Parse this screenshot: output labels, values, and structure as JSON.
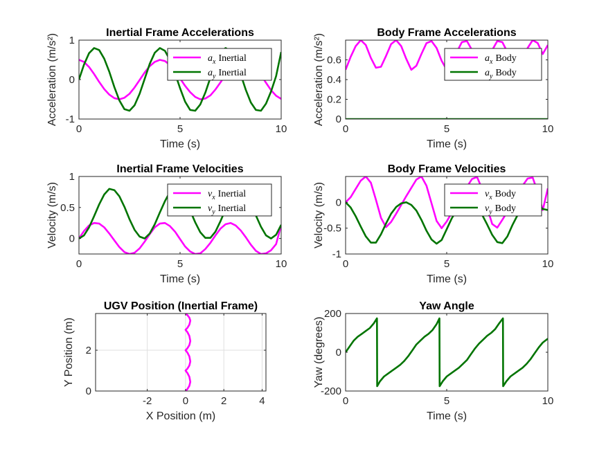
{
  "figure": {
    "background": "#ffffff"
  },
  "colors": {
    "magenta": "#ff00ff",
    "green": "#007400",
    "grid": "#dfdfdf",
    "axis": "#262626"
  },
  "chart_data": [
    {
      "id": "inertial-acc",
      "type": "line",
      "title": "Inertial Frame Accelerations",
      "xlabel": "Time (s)",
      "ylabel": "Acceleration (m/s²)",
      "xlim": [
        0,
        10
      ],
      "ylim": [
        -1,
        1
      ],
      "xticks": [
        0,
        5,
        10
      ],
      "yticks": [
        -1,
        0,
        1
      ],
      "grid": false,
      "legend": "top-right",
      "series": [
        {
          "name": "a_x Inertial",
          "legend_var": "a",
          "legend_sub": "x",
          "legend_word": "Inertial",
          "color": "#ff00ff",
          "x": [
            0,
            0.25,
            0.5,
            0.75,
            1.0,
            1.25,
            1.5,
            1.75,
            2.0,
            2.25,
            2.5,
            2.75,
            3.0,
            3.25,
            3.5,
            3.75,
            4.0,
            4.25,
            4.5,
            4.75,
            5.0,
            5.25,
            5.5,
            5.75,
            6.0,
            6.25,
            6.5,
            6.75,
            7.0,
            7.25,
            7.5,
            7.75,
            8.0,
            8.25,
            8.5,
            8.75,
            9.0,
            9.25,
            9.5,
            9.75,
            10.0
          ],
          "y": [
            0.5,
            0.45,
            0.32,
            0.14,
            -0.06,
            -0.24,
            -0.38,
            -0.47,
            -0.5,
            -0.46,
            -0.36,
            -0.2,
            -0.01,
            0.18,
            0.34,
            0.45,
            0.5,
            0.47,
            0.37,
            0.22,
            0.03,
            -0.16,
            -0.32,
            -0.44,
            -0.5,
            -0.48,
            -0.4,
            -0.25,
            -0.07,
            0.12,
            0.29,
            0.42,
            0.49,
            0.49,
            0.42,
            0.29,
            0.11,
            -0.08,
            -0.27,
            -0.41,
            -0.49
          ]
        },
        {
          "name": "a_y Inertial",
          "legend_var": "a",
          "legend_sub": "y",
          "legend_word": "Inertial",
          "color": "#007400",
          "x": [
            0,
            0.25,
            0.5,
            0.75,
            1.0,
            1.25,
            1.5,
            1.75,
            2.0,
            2.25,
            2.5,
            2.75,
            3.0,
            3.25,
            3.5,
            3.75,
            4.0,
            4.25,
            4.5,
            4.75,
            5.0,
            5.25,
            5.5,
            5.75,
            6.0,
            6.25,
            6.5,
            6.75,
            7.0,
            7.25,
            7.5,
            7.75,
            8.0,
            8.25,
            8.5,
            8.75,
            9.0,
            9.25,
            9.5,
            9.75,
            10.0
          ],
          "y": [
            0,
            0.38,
            0.67,
            0.8,
            0.75,
            0.53,
            0.2,
            -0.19,
            -0.53,
            -0.75,
            -0.79,
            -0.65,
            -0.36,
            0.02,
            0.4,
            0.68,
            0.8,
            0.73,
            0.5,
            0.16,
            -0.22,
            -0.56,
            -0.77,
            -0.79,
            -0.63,
            -0.33,
            0.05,
            0.42,
            0.69,
            0.8,
            0.72,
            0.48,
            0.13,
            -0.26,
            -0.58,
            -0.77,
            -0.79,
            -0.61,
            -0.3,
            0.09,
            0.7
          ]
        }
      ]
    },
    {
      "id": "body-acc",
      "type": "line",
      "title": "Body Frame Accelerations",
      "xlabel": "Time (s)",
      "ylabel": "Acceleration (m/s²)",
      "xlim": [
        0,
        10
      ],
      "ylim": [
        0,
        0.8
      ],
      "xticks": [
        0,
        5,
        10
      ],
      "yticks": [
        0,
        0.2,
        0.4,
        0.6
      ],
      "grid": false,
      "legend": "top-right",
      "series": [
        {
          "name": "a_x Body",
          "legend_var": "a",
          "legend_sub": "x",
          "legend_word": "Body",
          "color": "#ff00ff",
          "x": [
            0,
            0.25,
            0.5,
            0.75,
            1.0,
            1.25,
            1.5,
            1.75,
            2.0,
            2.25,
            2.5,
            2.75,
            3.0,
            3.25,
            3.5,
            3.75,
            4.0,
            4.25,
            4.5,
            4.75,
            5.0,
            5.25,
            5.5,
            5.75,
            6.0,
            6.25,
            6.5,
            6.75,
            7.0,
            7.25,
            7.5,
            7.75,
            8.0,
            8.25,
            8.5,
            8.75,
            9.0,
            9.25,
            9.5,
            9.75,
            10.0
          ],
          "y": [
            0.5,
            0.63,
            0.74,
            0.8,
            0.75,
            0.62,
            0.52,
            0.53,
            0.64,
            0.76,
            0.8,
            0.74,
            0.61,
            0.5,
            0.54,
            0.66,
            0.77,
            0.79,
            0.72,
            0.59,
            0.5,
            0.56,
            0.68,
            0.78,
            0.79,
            0.7,
            0.57,
            0.5,
            0.58,
            0.7,
            0.79,
            0.78,
            0.68,
            0.55,
            0.51,
            0.6,
            0.72,
            0.8,
            0.77,
            0.66,
            0.75
          ]
        },
        {
          "name": "a_y Body",
          "legend_var": "a",
          "legend_sub": "y",
          "legend_word": "Body",
          "color": "#007400",
          "x": [
            0,
            10
          ],
          "y": [
            0,
            0
          ]
        }
      ]
    },
    {
      "id": "inertial-vel",
      "type": "line",
      "title": "Inertial Frame Velocities",
      "xlabel": "Time (s)",
      "ylabel": "Velocity (m/s)",
      "xlim": [
        0,
        10
      ],
      "ylim": [
        -0.25,
        1
      ],
      "xticks": [
        0,
        5,
        10
      ],
      "yticks": [
        0,
        0.5,
        1
      ],
      "grid": false,
      "legend": "top-right",
      "series": [
        {
          "name": "v_x Inertial",
          "legend_var": "v",
          "legend_sub": "x",
          "legend_word": "Inertial",
          "color": "#ff00ff",
          "x": [
            0,
            0.25,
            0.5,
            0.75,
            1.0,
            1.25,
            1.5,
            1.75,
            2.0,
            2.25,
            2.5,
            2.75,
            3.0,
            3.25,
            3.5,
            3.75,
            4.0,
            4.25,
            4.5,
            4.75,
            5.0,
            5.25,
            5.5,
            5.75,
            6.0,
            6.25,
            6.5,
            6.75,
            7.0,
            7.25,
            7.5,
            7.75,
            8.0,
            8.25,
            8.5,
            8.75,
            9.0,
            9.25,
            9.5,
            9.75,
            10.0
          ],
          "y": [
            0,
            0.12,
            0.21,
            0.25,
            0.24,
            0.18,
            0.08,
            -0.03,
            -0.14,
            -0.22,
            -0.25,
            -0.23,
            -0.16,
            -0.05,
            0.07,
            0.18,
            0.24,
            0.25,
            0.2,
            0.11,
            -0.01,
            -0.13,
            -0.21,
            -0.25,
            -0.24,
            -0.17,
            -0.07,
            0.05,
            0.16,
            0.23,
            0.25,
            0.21,
            0.13,
            0.02,
            -0.1,
            -0.2,
            -0.25,
            -0.24,
            -0.19,
            -0.09,
            0.22
          ]
        },
        {
          "name": "v_y Inertial",
          "legend_var": "v",
          "legend_sub": "y",
          "legend_word": "Inertial",
          "color": "#007400",
          "x": [
            0,
            0.25,
            0.5,
            0.75,
            1.0,
            1.25,
            1.5,
            1.75,
            2.0,
            2.25,
            2.5,
            2.75,
            3.0,
            3.25,
            3.5,
            3.75,
            4.0,
            4.25,
            4.5,
            4.75,
            5.0,
            5.25,
            5.5,
            5.75,
            6.0,
            6.25,
            6.5,
            6.75,
            7.0,
            7.25,
            7.5,
            7.75,
            8.0,
            8.25,
            8.5,
            8.75,
            9.0,
            9.25,
            9.5,
            9.75,
            10.0
          ],
          "y": [
            0,
            0.05,
            0.18,
            0.36,
            0.55,
            0.71,
            0.8,
            0.78,
            0.68,
            0.51,
            0.31,
            0.14,
            0.03,
            0.0,
            0.08,
            0.23,
            0.42,
            0.6,
            0.75,
            0.8,
            0.76,
            0.63,
            0.45,
            0.26,
            0.1,
            0.01,
            0.01,
            0.11,
            0.28,
            0.47,
            0.65,
            0.78,
            0.8,
            0.72,
            0.56,
            0.37,
            0.19,
            0.05,
            0.0,
            0.06,
            0.22
          ]
        }
      ]
    },
    {
      "id": "body-vel",
      "type": "line",
      "title": "Body Frame Velocities",
      "xlabel": "Time (s)",
      "ylabel": "Velocity (m/s)",
      "xlim": [
        0,
        10
      ],
      "ylim": [
        -1,
        0.5
      ],
      "xticks": [
        0,
        5,
        10
      ],
      "yticks": [
        -1,
        -0.5,
        0
      ],
      "grid": false,
      "legend": "top-right",
      "series": [
        {
          "name": "v_x Body",
          "legend_var": "v",
          "legend_sub": "x",
          "legend_word": "Body",
          "color": "#ff00ff",
          "x": [
            0,
            0.25,
            0.5,
            0.75,
            1.0,
            1.25,
            1.5,
            1.75,
            2.0,
            2.25,
            2.5,
            2.75,
            3.0,
            3.25,
            3.5,
            3.75,
            4.0,
            4.25,
            4.5,
            4.75,
            5.0,
            5.25,
            5.5,
            5.75,
            6.0,
            6.25,
            6.5,
            6.75,
            7.0,
            7.25,
            7.5,
            7.75,
            8.0,
            8.25,
            8.5,
            8.75,
            9.0,
            9.25,
            9.5,
            9.75,
            10.0
          ],
          "y": [
            0,
            0.1,
            0.26,
            0.42,
            0.5,
            0.38,
            0.05,
            -0.3,
            -0.48,
            -0.38,
            -0.22,
            -0.05,
            0.12,
            0.28,
            0.44,
            0.5,
            0.32,
            -0.02,
            -0.36,
            -0.5,
            -0.37,
            -0.2,
            -0.03,
            0.14,
            0.3,
            0.45,
            0.49,
            0.26,
            -0.1,
            -0.42,
            -0.49,
            -0.34,
            -0.18,
            -0.01,
            0.16,
            0.32,
            0.46,
            0.48,
            0.2,
            -0.15,
            0.27
          ]
        },
        {
          "name": "v_y Body",
          "legend_var": "v",
          "legend_sub": "y",
          "legend_word": "Body",
          "color": "#007400",
          "x": [
            0,
            0.25,
            0.5,
            0.75,
            1.0,
            1.25,
            1.5,
            1.75,
            2.0,
            2.25,
            2.5,
            2.75,
            3.0,
            3.25,
            3.5,
            3.75,
            4.0,
            4.25,
            4.5,
            4.75,
            5.0,
            5.25,
            5.5,
            5.75,
            6.0,
            6.25,
            6.5,
            6.75,
            7.0,
            7.25,
            7.5,
            7.75,
            8.0,
            8.25,
            8.5,
            8.75,
            9.0,
            9.25,
            9.5,
            9.75,
            10.0
          ],
          "y": [
            0,
            -0.1,
            -0.27,
            -0.47,
            -0.66,
            -0.78,
            -0.78,
            -0.62,
            -0.41,
            -0.22,
            -0.09,
            -0.02,
            0.0,
            -0.05,
            -0.16,
            -0.34,
            -0.55,
            -0.72,
            -0.8,
            -0.73,
            -0.52,
            -0.31,
            -0.15,
            -0.05,
            0.0,
            -0.02,
            -0.1,
            -0.24,
            -0.43,
            -0.63,
            -0.77,
            -0.79,
            -0.66,
            -0.44,
            -0.25,
            -0.11,
            -0.03,
            0.0,
            -0.04,
            -0.13,
            -0.15
          ]
        }
      ]
    },
    {
      "id": "ugv-position",
      "type": "line",
      "title": "UGV Position (Inertial Frame)",
      "xlabel": "X Position (m)",
      "ylabel": "Y Position (m)",
      "xlim": [
        -4.7,
        4.2
      ],
      "ylim": [
        0,
        3.8
      ],
      "xticks": [
        -2,
        0,
        2,
        4
      ],
      "yticks": [
        0,
        2
      ],
      "grid": true,
      "legend": "none",
      "series": [
        {
          "color": "#ff00ff",
          "x": [
            0,
            0.1,
            0.2,
            0.25,
            0.2,
            0.1,
            0,
            0.1,
            0.2,
            0.25,
            0.2,
            0.1,
            0,
            0.1,
            0.2,
            0.25,
            0.2,
            0.1,
            0,
            0.1,
            0.2,
            0.25,
            0.2,
            0.1,
            0
          ],
          "y": [
            0,
            0.1,
            0.25,
            0.45,
            0.7,
            0.88,
            1.0,
            1.1,
            1.25,
            1.45,
            1.7,
            1.88,
            2.0,
            2.1,
            2.25,
            2.45,
            2.7,
            2.88,
            3.0,
            3.1,
            3.25,
            3.45,
            3.6,
            3.72,
            3.8
          ]
        }
      ]
    },
    {
      "id": "yaw",
      "type": "line",
      "title": "Yaw Angle",
      "xlabel": "Time (s)",
      "ylabel": "Yaw (degrees)",
      "xlim": [
        0,
        10
      ],
      "ylim": [
        -200,
        200
      ],
      "xticks": [
        0,
        5,
        10
      ],
      "yticks": [
        -200,
        0,
        200
      ],
      "grid": false,
      "legend": "none",
      "series": [
        {
          "color": "#007400",
          "x": [
            0,
            0.2,
            0.4,
            0.6,
            0.8,
            1.0,
            1.2,
            1.4,
            1.55,
            1.56,
            1.7,
            1.9,
            2.1,
            2.3,
            2.5,
            2.7,
            2.9,
            3.1,
            3.3,
            3.5,
            3.7,
            3.9,
            4.1,
            4.3,
            4.5,
            4.64,
            4.65,
            4.8,
            5.0,
            5.2,
            5.4,
            5.6,
            5.8,
            6.0,
            6.2,
            6.4,
            6.6,
            6.8,
            7.0,
            7.2,
            7.4,
            7.6,
            7.78,
            7.79,
            7.95,
            8.15,
            8.35,
            8.55,
            8.75,
            8.95,
            9.15,
            9.35,
            9.55,
            9.75,
            10.0
          ],
          "y": [
            0,
            30,
            60,
            80,
            95,
            110,
            125,
            150,
            175,
            -175,
            -150,
            -125,
            -110,
            -95,
            -80,
            -65,
            -45,
            -20,
            10,
            40,
            60,
            80,
            95,
            115,
            145,
            175,
            -175,
            -150,
            -125,
            -110,
            -95,
            -80,
            -60,
            -40,
            -10,
            20,
            45,
            65,
            85,
            100,
            120,
            150,
            175,
            -175,
            -150,
            -125,
            -110,
            -95,
            -80,
            -60,
            -35,
            -5,
            25,
            50,
            70
          ]
        }
      ]
    }
  ]
}
